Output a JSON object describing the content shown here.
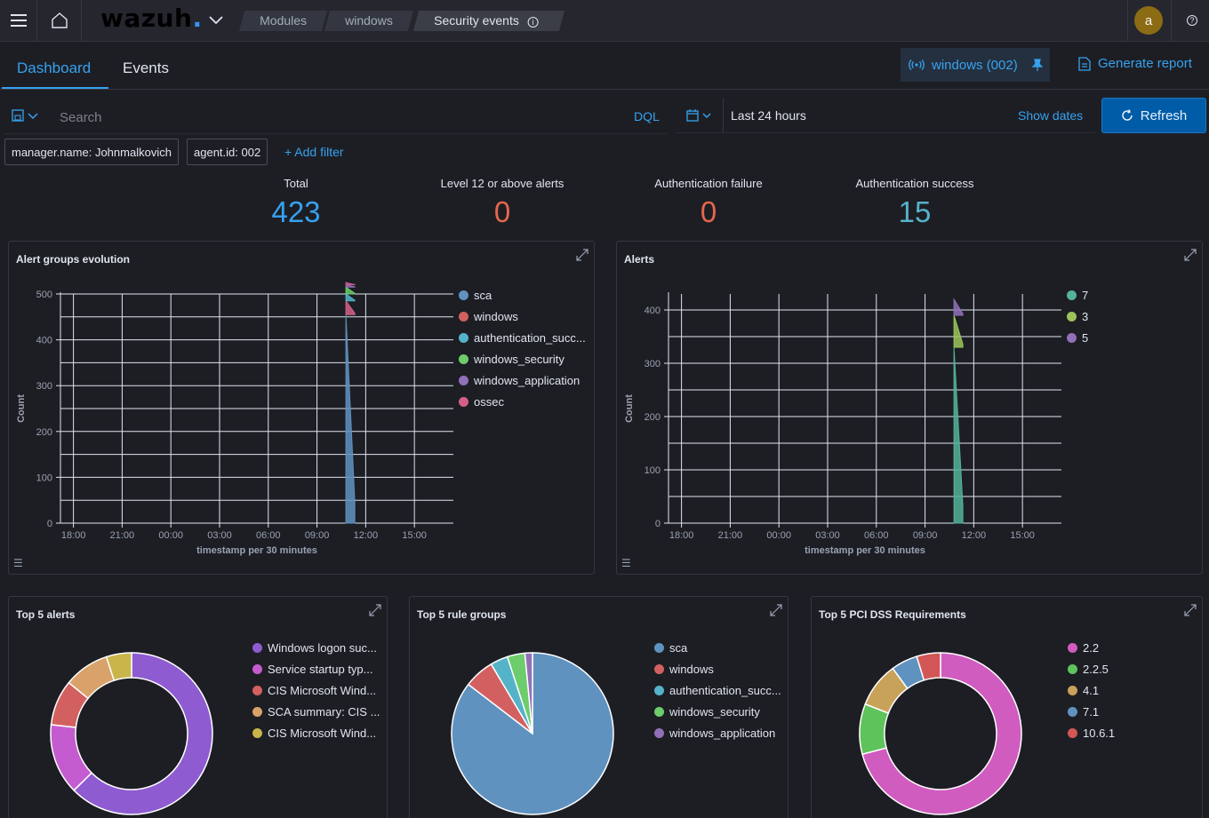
{
  "header": {
    "logo_text": "wazuh",
    "breadcrumbs": [
      "Modules",
      "windows",
      "Security events"
    ],
    "avatar_letter": "a"
  },
  "tabs": [
    "Dashboard",
    "Events"
  ],
  "agent_chip": "windows (002)",
  "generate_report": "Generate report",
  "search": {
    "placeholder": "Search",
    "dql": "DQL"
  },
  "date": {
    "range": "Last 24 hours",
    "show_dates": "Show dates"
  },
  "refresh_label": "Refresh",
  "filters": [
    "manager.name: Johnmalkovich",
    "agent.id: 002"
  ],
  "add_filter": "+ Add filter",
  "metrics": [
    {
      "label": "Total",
      "value": "423",
      "color": "#36a2ef"
    },
    {
      "label": "Level 12 or above alerts",
      "value": "0",
      "color": "#e7664c"
    },
    {
      "label": "Authentication failure",
      "value": "0",
      "color": "#e7664c"
    },
    {
      "label": "Authentication success",
      "value": "15",
      "color": "#54b399"
    }
  ],
  "panels": {
    "alert_groups": {
      "title": "Alert groups evolution"
    },
    "alerts": {
      "title": "Alerts"
    },
    "top5_alerts": {
      "title": "Top 5 alerts"
    },
    "top5_rule_groups": {
      "title": "Top 5 rule groups"
    },
    "top5_pci": {
      "title": "Top 5 PCI DSS Requirements"
    }
  },
  "chart_data": [
    {
      "type": "area",
      "title": "Alert groups evolution",
      "xlabel": "timestamp per 30 minutes",
      "ylabel": "Count",
      "x_ticks": [
        "18:00",
        "21:00",
        "00:00",
        "03:00",
        "06:00",
        "09:00",
        "12:00",
        "15:00"
      ],
      "ylim": [
        0,
        500
      ],
      "y_ticks": [
        0,
        100,
        200,
        300,
        400,
        500
      ],
      "spike_time": "11:00",
      "series": [
        {
          "name": "sca",
          "color": "#6092c0",
          "peak": 455
        },
        {
          "name": "windows",
          "color": "#d36086",
          "peak": 30
        },
        {
          "name": "authentication_succ...",
          "color": "#54b3c9",
          "peak": 15
        },
        {
          "name": "windows_security",
          "color": "#6dcc6b",
          "peak": 15
        },
        {
          "name": "windows_application",
          "color": "#9170b8",
          "peak": 5
        },
        {
          "name": "ossec",
          "color": "#ca5b8c",
          "peak": 5
        }
      ],
      "legend_colors": [
        "#6092c0",
        "#d36060",
        "#54b3c9",
        "#6dcc6b",
        "#9170b8",
        "#d36086"
      ],
      "legend": "right"
    },
    {
      "type": "area",
      "title": "Alerts",
      "xlabel": "timestamp per 30 minutes",
      "ylabel": "Count",
      "x_ticks": [
        "18:00",
        "21:00",
        "00:00",
        "03:00",
        "06:00",
        "09:00",
        "12:00",
        "15:00"
      ],
      "ylim": [
        0,
        430
      ],
      "y_ticks": [
        0,
        100,
        200,
        300,
        400
      ],
      "spike_time": "11:00",
      "series": [
        {
          "name": "7",
          "color": "#54b399",
          "peak": 330
        },
        {
          "name": "3",
          "color": "#9bc55a",
          "peak": 60
        },
        {
          "name": "5",
          "color": "#9170b8",
          "peak": 30
        }
      ],
      "legend": "right"
    },
    {
      "type": "pie",
      "donut": true,
      "title": "Top 5 alerts",
      "labels": [
        "Windows logon suc...",
        "Service startup typ...",
        "CIS Microsoft Wind...",
        "SCA summary: CIS ...",
        "CIS Microsoft Wind..."
      ],
      "values": [
        62,
        14,
        9,
        9,
        5
      ],
      "colors": [
        "#8e5bd1",
        "#c45ccf",
        "#d36060",
        "#d9a26b",
        "#c9b54a"
      ]
    },
    {
      "type": "pie",
      "donut": false,
      "title": "Top 5 rule groups",
      "labels": [
        "sca",
        "windows",
        "authentication_succ...",
        "windows_security",
        "windows_application"
      ],
      "values": [
        85,
        6,
        3.5,
        3.5,
        1.5
      ],
      "colors": [
        "#6092c0",
        "#d36060",
        "#54b3c9",
        "#6dcc6b",
        "#9170b8"
      ]
    },
    {
      "type": "pie",
      "donut": true,
      "title": "Top 5 PCI DSS Requirements",
      "labels": [
        "2.2",
        "2.2.5",
        "4.1",
        "7.1",
        "10.6.1"
      ],
      "values": [
        67,
        9.5,
        8.5,
        5,
        4.5
      ],
      "colors": [
        "#d05cbf",
        "#5fc35c",
        "#c9a25a",
        "#6092c0",
        "#d35656"
      ]
    }
  ]
}
